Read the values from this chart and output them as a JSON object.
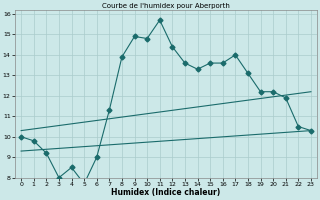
{
  "title": "Courbe de l'humidex pour Aberporth",
  "xlabel": "Humidex (Indice chaleur)",
  "xlim": [
    -0.5,
    23.5
  ],
  "ylim": [
    8,
    16.2
  ],
  "yticks": [
    8,
    9,
    10,
    11,
    12,
    13,
    14,
    15,
    16
  ],
  "xticks": [
    0,
    1,
    2,
    3,
    4,
    5,
    6,
    7,
    8,
    9,
    10,
    11,
    12,
    13,
    14,
    15,
    16,
    17,
    18,
    19,
    20,
    21,
    22,
    23
  ],
  "bg_color": "#cce8e8",
  "grid_color": "#aacccc",
  "line_color": "#1a6b6b",
  "line1_x": [
    0,
    1,
    2,
    3,
    4,
    5,
    6,
    7,
    8,
    9,
    10,
    11,
    12,
    13,
    14,
    15,
    16,
    17,
    18,
    19,
    20,
    21,
    22,
    23
  ],
  "line1_y": [
    10.0,
    9.8,
    9.2,
    8.0,
    8.5,
    7.7,
    9.0,
    11.3,
    13.9,
    14.9,
    14.8,
    15.7,
    14.4,
    13.6,
    13.3,
    13.6,
    13.6,
    14.0,
    13.1,
    12.2,
    12.2,
    11.9,
    10.5,
    10.3
  ],
  "line2_x": [
    0,
    23
  ],
  "line2_y": [
    9.3,
    10.3
  ],
  "line3_x": [
    0,
    23
  ],
  "line3_y": [
    10.3,
    12.2
  ],
  "marker_size": 2.5,
  "linewidth": 0.8
}
